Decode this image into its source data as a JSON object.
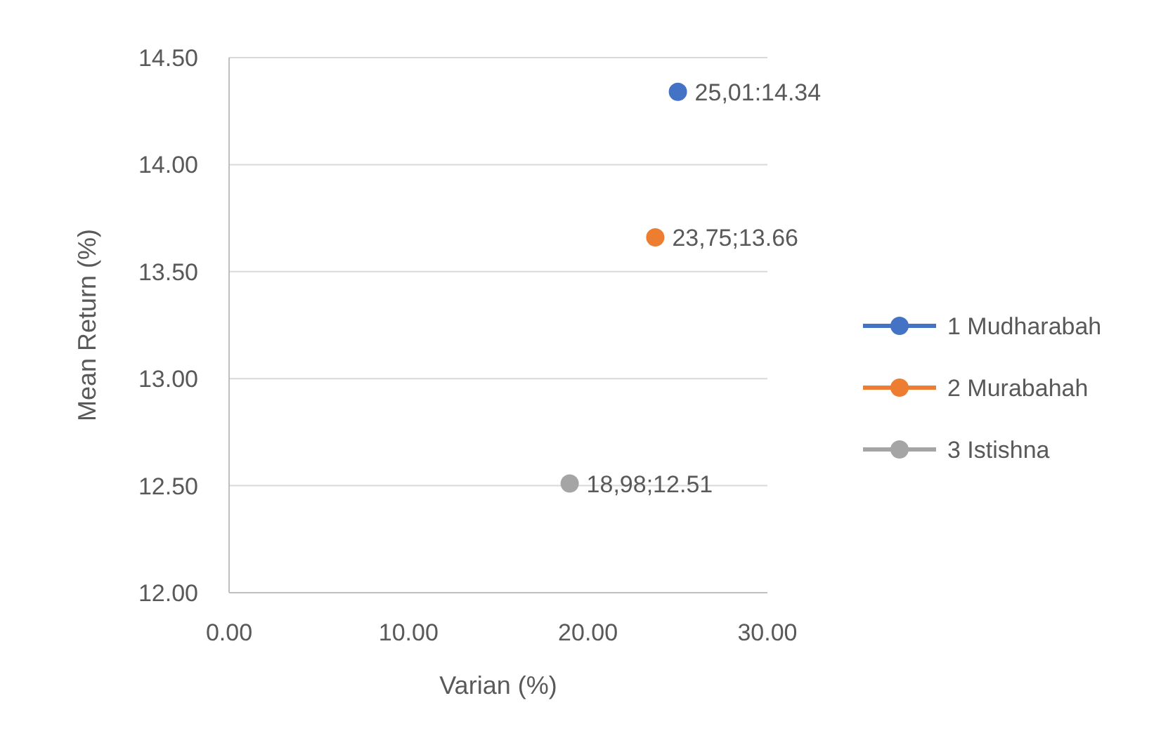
{
  "chart_data": {
    "type": "scatter",
    "xlabel": "Varian (%)",
    "ylabel": "Mean Return (%)",
    "xlim": [
      0,
      30
    ],
    "xticks": [
      {
        "value": 0,
        "label": "0.00"
      },
      {
        "value": 10,
        "label": "10.00"
      },
      {
        "value": 20,
        "label": "20.00"
      },
      {
        "value": 30,
        "label": "30.00"
      }
    ],
    "ylim": [
      12,
      14.5
    ],
    "yticks": [
      {
        "value": 12,
        "label": "12.00"
      },
      {
        "value": 12.5,
        "label": "12.50"
      },
      {
        "value": 13,
        "label": "13.00"
      },
      {
        "value": 13.5,
        "label": "13.50"
      },
      {
        "value": 14,
        "label": "14.00"
      },
      {
        "value": 14.5,
        "label": "14.50"
      }
    ],
    "grid": "y",
    "legend": "right",
    "marker": "circle",
    "series": [
      {
        "name": "1 Mudharabah",
        "color": "#4472c4",
        "x": [
          25.01
        ],
        "values": [
          14.34
        ],
        "value_labels": [
          "25,01:14.34"
        ]
      },
      {
        "name": "2 Murabahah",
        "color": "#ed7d31",
        "x": [
          23.75
        ],
        "values": [
          13.66
        ],
        "value_labels": [
          "23,75;13.66"
        ]
      },
      {
        "name": "3 Istishna",
        "color": "#a5a5a5",
        "x": [
          18.98
        ],
        "values": [
          12.51
        ],
        "value_labels": [
          "18,98;12.51"
        ]
      }
    ]
  }
}
